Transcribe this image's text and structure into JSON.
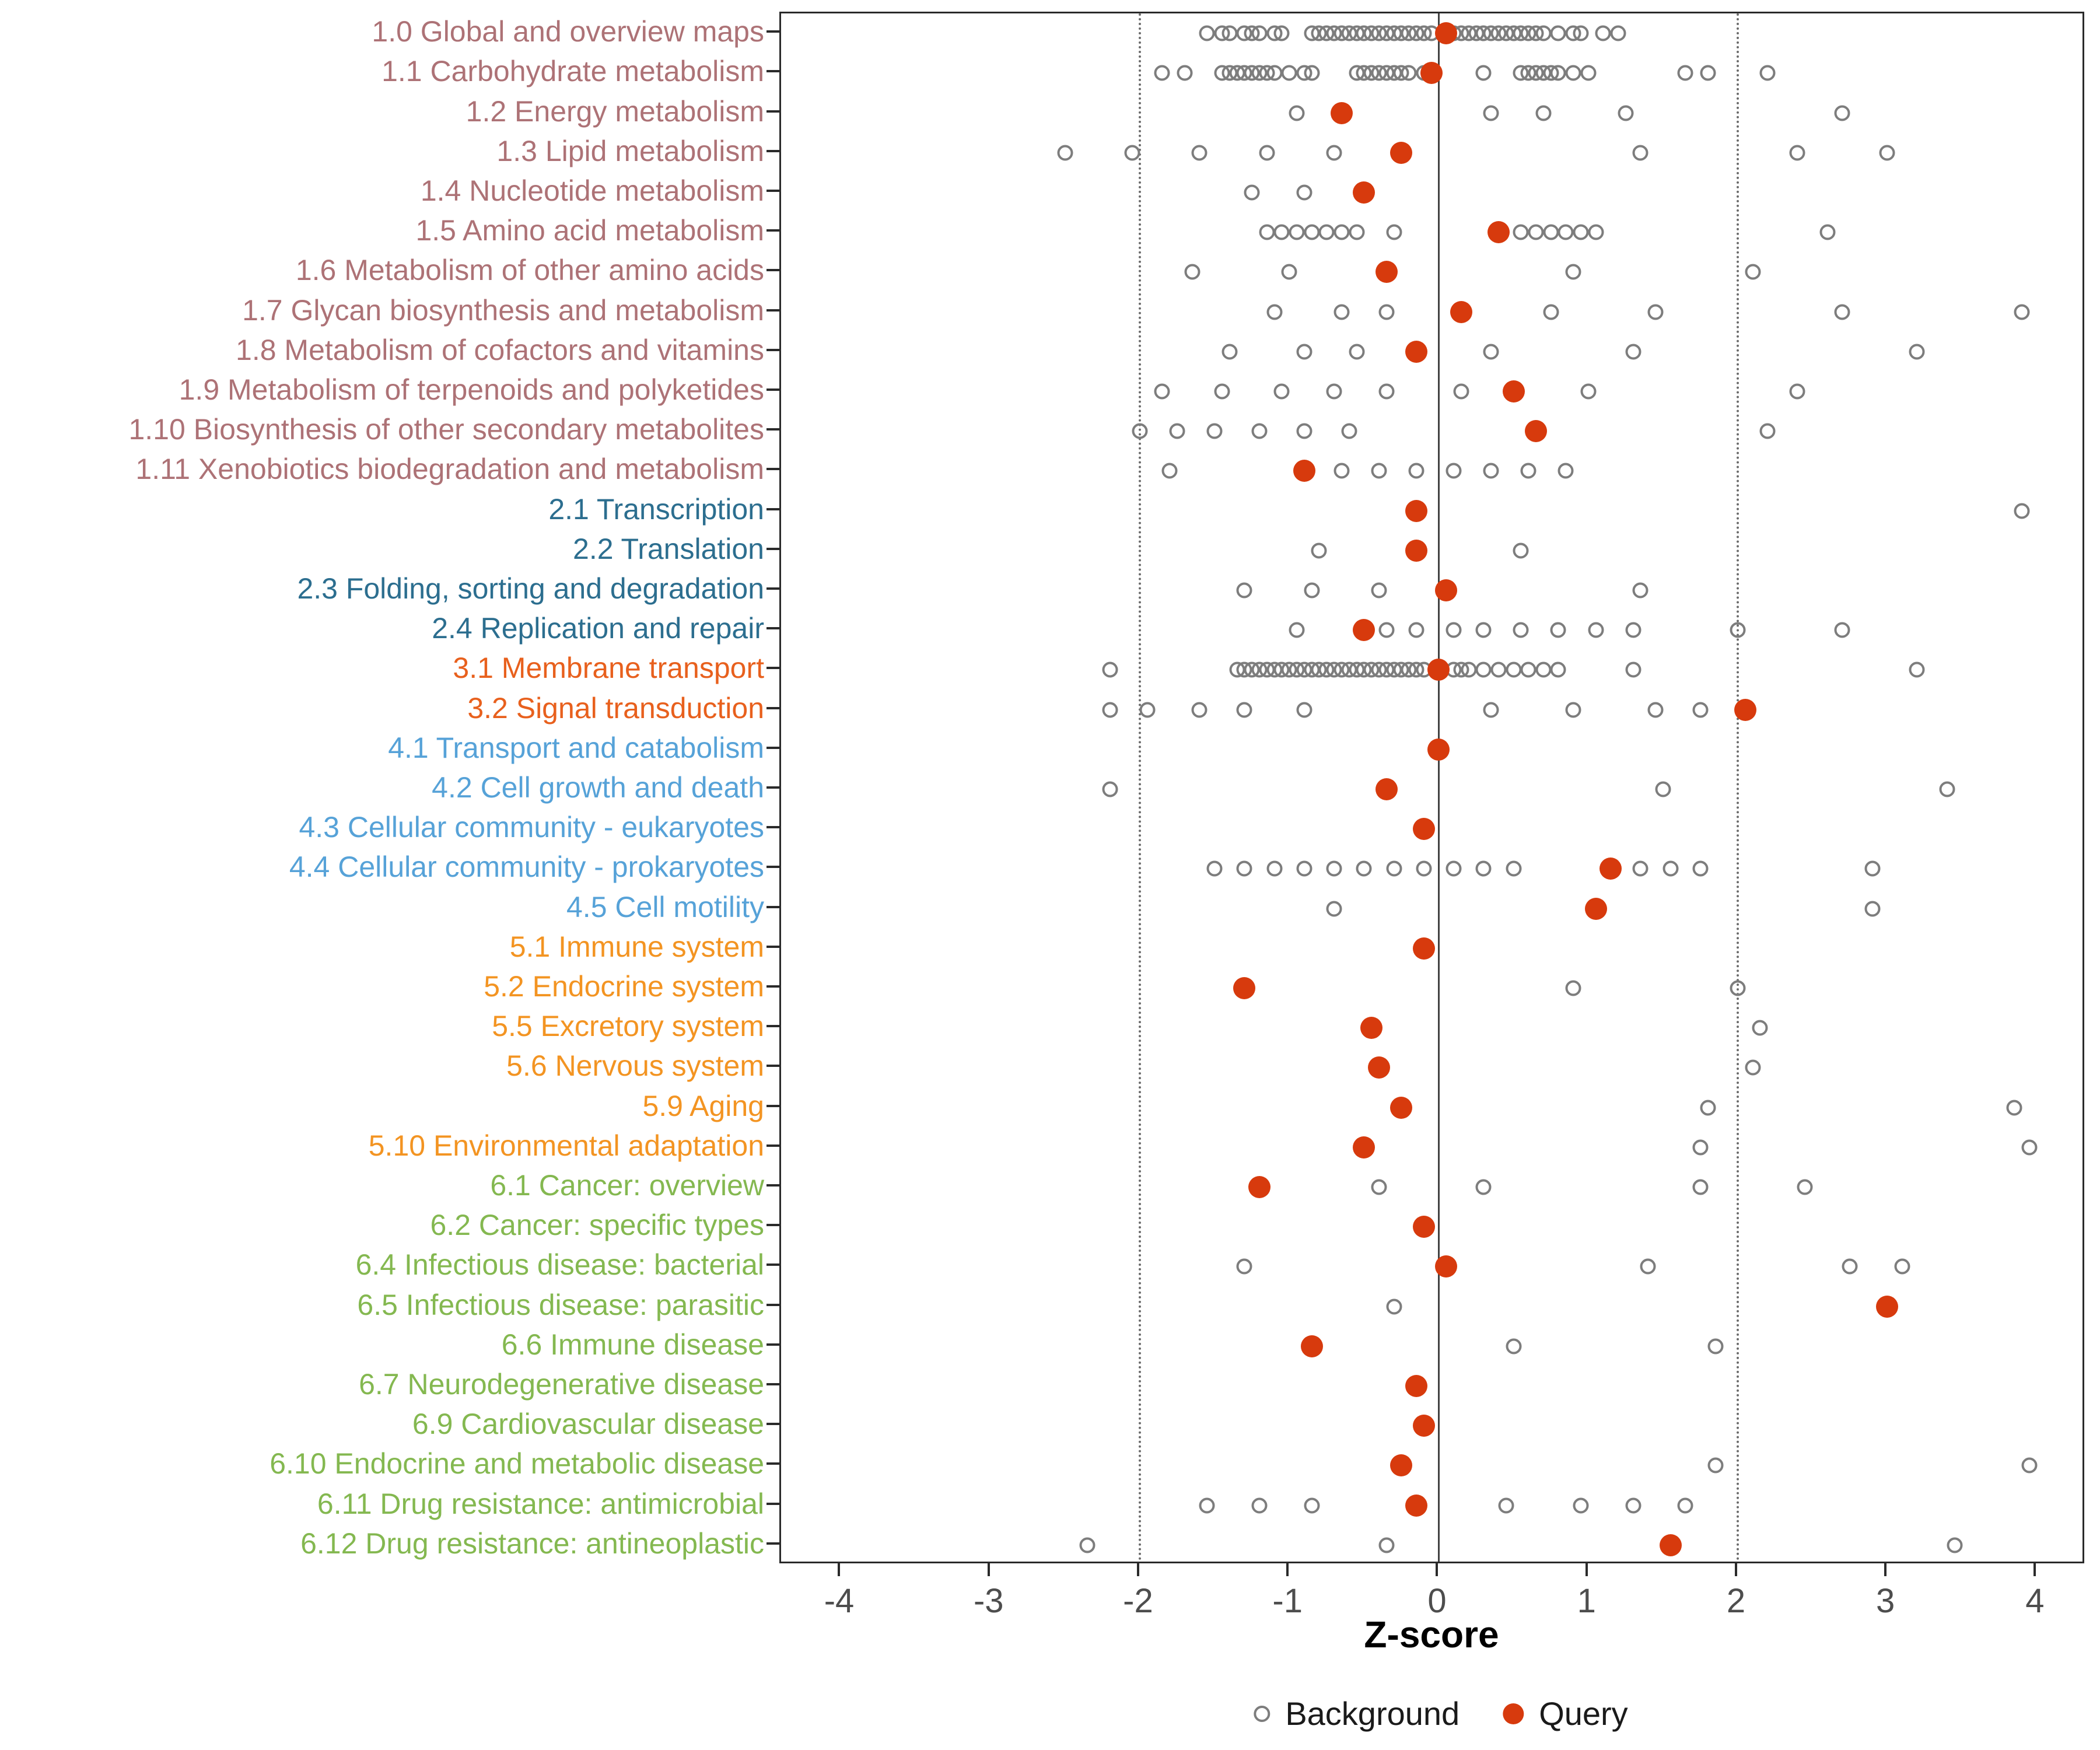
{
  "chart_data": {
    "type": "scatter",
    "title": "",
    "xlabel": "Z-score",
    "ylabel": "",
    "xlim": [
      -4.4,
      4.33
    ],
    "x_ticks": [
      -4,
      -3,
      -2,
      -1,
      0,
      1,
      2,
      3,
      4
    ],
    "grid": "off",
    "reference_lines": {
      "solid_at": [
        0
      ],
      "dotted_at": [
        -2,
        2
      ]
    },
    "legend_position": "bottom-center",
    "legend": [
      {
        "label": "Background",
        "marker": "open-circle"
      },
      {
        "label": "Query",
        "marker": "filled-circle"
      }
    ],
    "colors": {
      "background_stroke": "#7d7d7d",
      "query_fill": "#d73a0d",
      "groups": {
        "metabolism": "#ad7276",
        "genetic-info-processing": "#2c6e8f",
        "env-info-processing": "#e8601d",
        "cellular-processes": "#56a2d8",
        "organismal-systems": "#f39422",
        "human-diseases": "#84b850"
      }
    },
    "rows": [
      {
        "label": "1.0 Global and overview maps",
        "group": "metabolism",
        "query": 0.05,
        "background": [
          -1.55,
          -1.45,
          -1.4,
          -1.3,
          -1.25,
          -1.2,
          -1.1,
          -1.05,
          -0.85,
          -0.8,
          -0.75,
          -0.7,
          -0.65,
          -0.6,
          -0.55,
          -0.5,
          -0.45,
          -0.4,
          -0.35,
          -0.3,
          -0.25,
          -0.2,
          -0.15,
          -0.1,
          -0.05,
          0.1,
          0.15,
          0.2,
          0.25,
          0.3,
          0.35,
          0.4,
          0.45,
          0.5,
          0.55,
          0.6,
          0.65,
          0.7,
          0.8,
          0.9,
          0.95,
          1.1,
          1.2
        ]
      },
      {
        "label": "1.1 Carbohydrate metabolism",
        "group": "metabolism",
        "query": -0.05,
        "background": [
          -1.85,
          -1.7,
          -1.45,
          -1.4,
          -1.35,
          -1.3,
          -1.25,
          -1.2,
          -1.15,
          -1.1,
          -1.0,
          -0.9,
          -0.85,
          -0.55,
          -0.5,
          -0.45,
          -0.4,
          -0.35,
          -0.3,
          -0.25,
          -0.2,
          -0.1,
          0.3,
          0.55,
          0.6,
          0.65,
          0.7,
          0.75,
          0.8,
          0.9,
          1.0,
          1.65,
          1.8,
          2.2
        ]
      },
      {
        "label": "1.2 Energy metabolism",
        "group": "metabolism",
        "query": -0.65,
        "background": [
          -0.95,
          0.35,
          0.7,
          1.25,
          2.7
        ]
      },
      {
        "label": "1.3 Lipid metabolism",
        "group": "metabolism",
        "query": -0.25,
        "background": [
          -2.5,
          -2.05,
          -1.6,
          -1.15,
          -0.7,
          1.35,
          2.4,
          3.0
        ]
      },
      {
        "label": "1.4 Nucleotide metabolism",
        "group": "metabolism",
        "query": -0.5,
        "background": [
          -1.25,
          -0.9
        ]
      },
      {
        "label": "1.5 Amino acid metabolism",
        "group": "metabolism",
        "query": 0.4,
        "background": [
          -1.15,
          -1.05,
          -0.95,
          -0.85,
          -0.75,
          -0.65,
          -0.55,
          -0.3,
          0.55,
          0.65,
          0.75,
          0.85,
          0.95,
          1.05,
          2.6
        ]
      },
      {
        "label": "1.6 Metabolism of other amino acids",
        "group": "metabolism",
        "query": -0.35,
        "background": [
          -1.65,
          -1.0,
          0.9,
          2.1
        ]
      },
      {
        "label": "1.7 Glycan biosynthesis and metabolism",
        "group": "metabolism",
        "query": 0.15,
        "background": [
          -1.1,
          -0.65,
          -0.35,
          0.75,
          1.45,
          2.7,
          3.9
        ]
      },
      {
        "label": "1.8 Metabolism of cofactors and vitamins",
        "group": "metabolism",
        "query": -0.15,
        "background": [
          -1.4,
          -0.9,
          -0.55,
          0.35,
          1.3,
          3.2
        ]
      },
      {
        "label": "1.9 Metabolism of terpenoids and polyketides",
        "group": "metabolism",
        "query": 0.5,
        "background": [
          -1.85,
          -1.45,
          -1.05,
          -0.7,
          -0.35,
          0.15,
          1.0,
          2.4
        ]
      },
      {
        "label": "1.10 Biosynthesis of other secondary metabolites",
        "group": "metabolism",
        "query": 0.65,
        "background": [
          -2.0,
          -1.75,
          -1.5,
          -1.2,
          -0.9,
          -0.6,
          2.2
        ]
      },
      {
        "label": "1.11 Xenobiotics biodegradation and metabolism",
        "group": "metabolism",
        "query": -0.9,
        "background": [
          -1.8,
          -0.65,
          -0.4,
          -0.15,
          0.1,
          0.35,
          0.6,
          0.85
        ]
      },
      {
        "label": "2.1 Transcription",
        "group": "genetic-info-processing",
        "query": -0.15,
        "background": [
          3.9
        ]
      },
      {
        "label": "2.2 Translation",
        "group": "genetic-info-processing",
        "query": -0.15,
        "background": [
          -0.8,
          0.55
        ]
      },
      {
        "label": "2.3 Folding, sorting and degradation",
        "group": "genetic-info-processing",
        "query": 0.05,
        "background": [
          -1.3,
          -0.85,
          -0.4,
          1.35
        ]
      },
      {
        "label": "2.4 Replication and repair",
        "group": "genetic-info-processing",
        "query": -0.5,
        "background": [
          -0.95,
          -0.35,
          -0.15,
          0.1,
          0.3,
          0.55,
          0.8,
          1.05,
          1.3,
          2.0,
          2.7
        ]
      },
      {
        "label": "3.1 Membrane transport",
        "group": "env-info-processing",
        "query": 0.0,
        "background": [
          -2.2,
          -1.35,
          -1.3,
          -1.25,
          -1.2,
          -1.15,
          -1.1,
          -1.05,
          -1.0,
          -0.95,
          -0.9,
          -0.85,
          -0.8,
          -0.75,
          -0.7,
          -0.65,
          -0.6,
          -0.55,
          -0.5,
          -0.45,
          -0.4,
          -0.35,
          -0.3,
          -0.25,
          -0.2,
          -0.15,
          -0.1,
          0.1,
          0.15,
          0.2,
          0.3,
          0.4,
          0.5,
          0.6,
          0.7,
          0.8,
          1.3,
          3.2
        ]
      },
      {
        "label": "3.2 Signal transduction",
        "group": "env-info-processing",
        "query": 2.05,
        "background": [
          -2.2,
          -1.95,
          -1.6,
          -1.3,
          -0.9,
          0.35,
          0.9,
          1.45,
          1.75
        ]
      },
      {
        "label": "4.1 Transport and catabolism",
        "group": "cellular-processes",
        "query": 0.0,
        "background": []
      },
      {
        "label": "4.2 Cell growth and death",
        "group": "cellular-processes",
        "query": -0.35,
        "background": [
          -2.2,
          1.5,
          3.4
        ]
      },
      {
        "label": "4.3 Cellular community - eukaryotes",
        "group": "cellular-processes",
        "query": -0.1,
        "background": []
      },
      {
        "label": "4.4 Cellular community - prokaryotes",
        "group": "cellular-processes",
        "query": 1.15,
        "background": [
          -1.5,
          -1.3,
          -1.1,
          -0.9,
          -0.7,
          -0.5,
          -0.3,
          -0.1,
          0.1,
          0.3,
          0.5,
          1.35,
          1.55,
          1.75,
          2.9
        ]
      },
      {
        "label": "4.5 Cell motility",
        "group": "cellular-processes",
        "query": 1.05,
        "background": [
          -0.7,
          2.9
        ]
      },
      {
        "label": "5.1 Immune system",
        "group": "organismal-systems",
        "query": -0.1,
        "background": []
      },
      {
        "label": "5.2 Endocrine system",
        "group": "organismal-systems",
        "query": -1.3,
        "background": [
          0.9,
          2.0
        ]
      },
      {
        "label": "5.5 Excretory system",
        "group": "organismal-systems",
        "query": -0.45,
        "background": [
          2.15
        ]
      },
      {
        "label": "5.6 Nervous system",
        "group": "organismal-systems",
        "query": -0.4,
        "background": [
          2.1
        ]
      },
      {
        "label": "5.9 Aging",
        "group": "organismal-systems",
        "query": -0.25,
        "background": [
          1.8,
          3.85
        ]
      },
      {
        "label": "5.10 Environmental adaptation",
        "group": "organismal-systems",
        "query": -0.5,
        "background": [
          1.75,
          3.95
        ]
      },
      {
        "label": "6.1 Cancer: overview",
        "group": "human-diseases",
        "query": -1.2,
        "background": [
          -0.4,
          0.3,
          1.75,
          2.45
        ]
      },
      {
        "label": "6.2 Cancer: specific types",
        "group": "human-diseases",
        "query": -0.1,
        "background": []
      },
      {
        "label": "6.4 Infectious disease: bacterial",
        "group": "human-diseases",
        "query": 0.05,
        "background": [
          -1.3,
          1.4,
          2.75,
          3.1
        ]
      },
      {
        "label": "6.5 Infectious disease: parasitic",
        "group": "human-diseases",
        "query": 3.0,
        "background": [
          -0.3
        ]
      },
      {
        "label": "6.6 Immune disease",
        "group": "human-diseases",
        "query": -0.85,
        "background": [
          0.5,
          1.85
        ]
      },
      {
        "label": "6.7 Neurodegenerative disease",
        "group": "human-diseases",
        "query": -0.15,
        "background": []
      },
      {
        "label": "6.9 Cardiovascular disease",
        "group": "human-diseases",
        "query": -0.1,
        "background": []
      },
      {
        "label": "6.10 Endocrine and metabolic disease",
        "group": "human-diseases",
        "query": -0.25,
        "background": [
          1.85,
          3.95
        ]
      },
      {
        "label": "6.11 Drug resistance: antimicrobial",
        "group": "human-diseases",
        "query": -0.15,
        "background": [
          -1.55,
          -1.2,
          -0.85,
          0.45,
          0.95,
          1.3,
          1.65
        ]
      },
      {
        "label": "6.12 Drug resistance: antineoplastic",
        "group": "human-diseases",
        "query": 1.55,
        "background": [
          -2.35,
          -0.35,
          3.45
        ]
      }
    ]
  }
}
